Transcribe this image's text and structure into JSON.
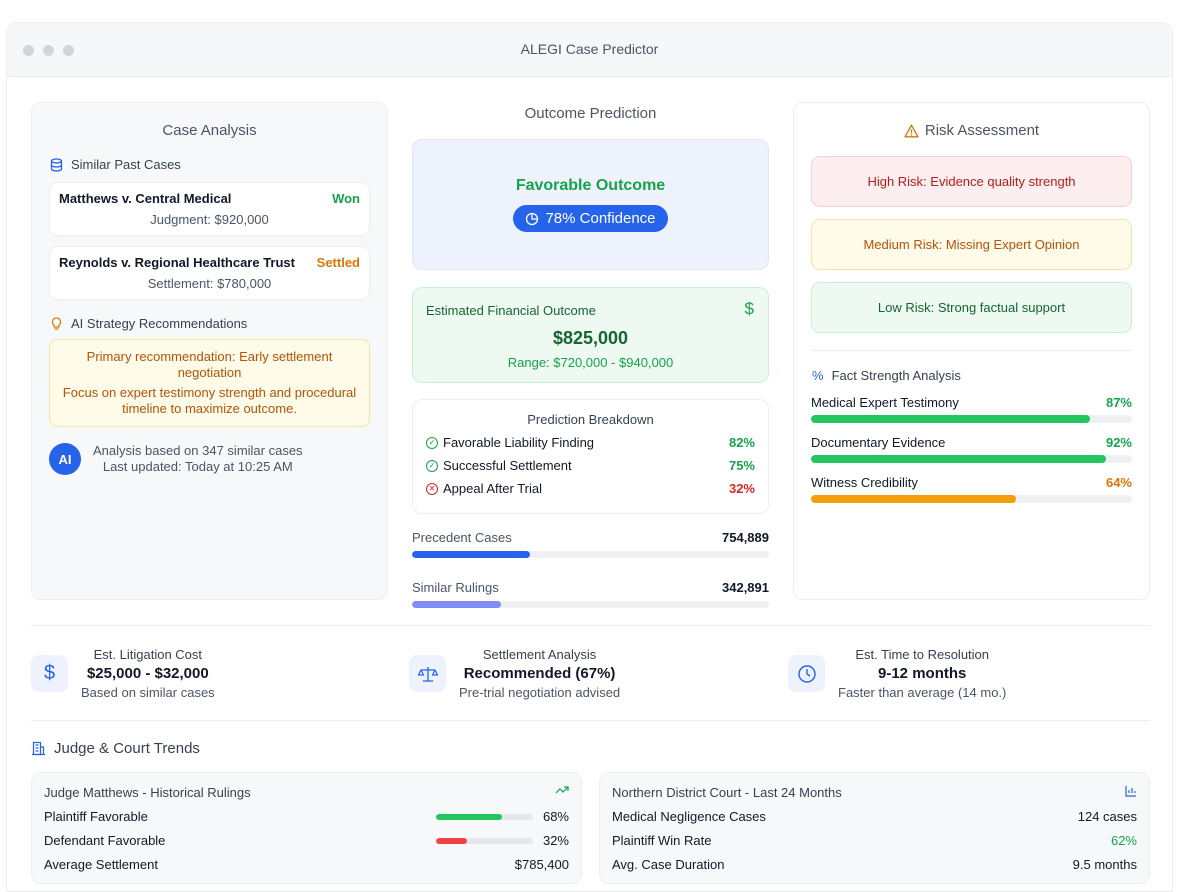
{
  "window": {
    "title": "ALEGI Case Predictor"
  },
  "colors": {
    "accent": "#2563eb",
    "green": "#16a34a",
    "amber": "#d97706",
    "red": "#dc2626",
    "lavender": "#818cf8"
  },
  "case_analysis": {
    "title": "Case Analysis",
    "similar_heading": "Similar Past Cases",
    "cases": [
      {
        "name": "Matthews v. Central Medical",
        "status": "Won",
        "amount": "Judgment: $920,000"
      },
      {
        "name": "Reynolds v. Regional Healthcare Trust",
        "status": "Settled",
        "amount": "Settlement: $780,000"
      }
    ],
    "strategy_heading": "AI Strategy Recommendations",
    "recommendation_primary": "Primary recommendation: Early settlement negotiation",
    "recommendation_secondary": "Focus on expert testimony strength and procedural timeline to maximize outcome.",
    "ai_badge": "AI",
    "analysis_basis": "Analysis based on 347 similar cases",
    "last_updated": "Last updated: Today at 10:25 AM"
  },
  "outcome": {
    "title": "Outcome Prediction",
    "label": "Favorable Outcome",
    "confidence": "78% Confidence",
    "financial": {
      "label": "Estimated Financial Outcome",
      "icon": "dollar-icon",
      "amount": "$825,000",
      "range": "Range: $720,000 - $940,000"
    },
    "breakdown": {
      "title": "Prediction Breakdown",
      "items": [
        {
          "label": "Favorable Liability Finding",
          "value": "82%",
          "icon": "check-circle-icon"
        },
        {
          "label": "Successful Settlement",
          "value": "75%",
          "icon": "check-circle-icon"
        },
        {
          "label": "Appeal After Trial",
          "value": "32%",
          "icon": "x-circle-icon"
        }
      ]
    },
    "stats": [
      {
        "label": "Precedent Cases",
        "value": "754,889",
        "fill": 0.33
      },
      {
        "label": "Similar Rulings",
        "value": "342,891",
        "fill": 0.25
      }
    ]
  },
  "risk": {
    "title": "Risk Assessment",
    "icon": "warning-icon",
    "items": [
      {
        "label": "High Risk: Evidence quality strength",
        "level": "high"
      },
      {
        "label": "Medium Risk: Missing Expert Opinion",
        "level": "medium"
      },
      {
        "label": "Low Risk: Strong factual support",
        "level": "low"
      }
    ],
    "fact_heading": "Fact Strength Analysis",
    "facts": [
      {
        "label": "Medical Expert Testimony",
        "value": "87%",
        "fill": 0.87
      },
      {
        "label": "Documentary Evidence",
        "value": "92%",
        "fill": 0.92
      },
      {
        "label": "Witness Credibility",
        "value": "64%",
        "fill": 0.64
      }
    ]
  },
  "metrics": [
    {
      "label": "Est. Litigation Cost",
      "value": "$25,000 - $32,000",
      "sub": "Based on similar cases",
      "icon": "dollar-icon"
    },
    {
      "label": "Settlement Analysis",
      "value": "Recommended (67%)",
      "sub": "Pre-trial negotiation advised",
      "icon": "scale-icon"
    },
    {
      "label": "Est. Time to Resolution",
      "value": "9-12 months",
      "sub": "Faster than average (14 mo.)",
      "icon": "clock-icon"
    }
  ],
  "trends": {
    "title": "Judge & Court Trends",
    "judge": {
      "title": "Judge Matthews - Historical Rulings",
      "rows": [
        {
          "label": "Plaintiff Favorable",
          "value": "68%",
          "fill": 0.68
        },
        {
          "label": "Defendant Favorable",
          "value": "32%",
          "fill": 0.32
        },
        {
          "label": "Average Settlement",
          "value": "$785,400"
        }
      ]
    },
    "court": {
      "title": "Northern District Court - Last 24 Months",
      "rows": [
        {
          "label": "Medical Negligence Cases",
          "value": "124 cases"
        },
        {
          "label": "Plaintiff Win Rate",
          "value": "62%"
        },
        {
          "label": "Avg. Case Duration",
          "value": "9.5 months"
        }
      ]
    }
  }
}
